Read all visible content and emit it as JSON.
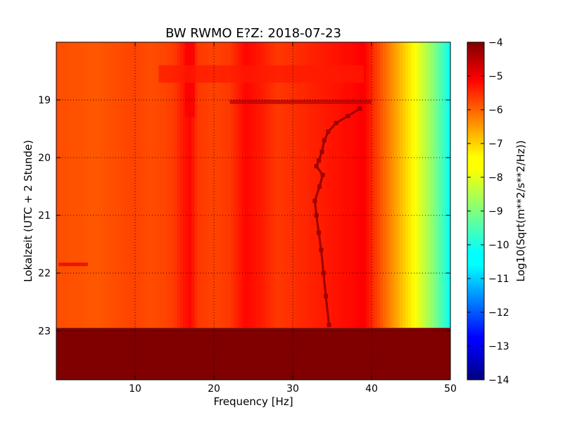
{
  "chart_data": {
    "type": "heatmap",
    "title": "BW RWMO E?Z: 2018-07-23",
    "xlabel": "Frequency [Hz]",
    "ylabel": "Lokalzeit (UTC + 2 Stunde)",
    "xlim": [
      0,
      50
    ],
    "ylim": [
      18.0,
      23.85
    ],
    "y_inverted": true,
    "x_ticks": [
      10,
      20,
      30,
      40,
      50
    ],
    "y_ticks": [
      19,
      20,
      21,
      22,
      23
    ],
    "grid": true,
    "colormap": "jet",
    "colorbar": {
      "label": "Log10(Sqrt(m**2/s**2/Hz))",
      "range": [
        -14,
        -4
      ],
      "ticks": [
        -4,
        -5,
        -6,
        -7,
        -8,
        -9,
        -10,
        -11,
        -12,
        -13,
        -14
      ]
    },
    "background_level": -6.0,
    "no_data_region": {
      "y_start": 22.95,
      "y_end": 23.85,
      "value": -4.0
    },
    "frequency_profile": {
      "x": [
        0,
        5,
        10,
        12,
        14,
        15,
        16,
        17,
        18,
        20,
        22,
        24,
        25,
        26,
        28,
        30,
        32,
        34,
        36,
        38,
        39,
        40,
        41,
        42,
        43,
        44,
        45,
        46,
        47,
        48,
        49,
        50
      ],
      "y": [
        -6.0,
        -6.1,
        -5.9,
        -6.0,
        -5.9,
        -5.8,
        -5.5,
        -5.3,
        -5.8,
        -5.9,
        -5.8,
        -5.3,
        -5.4,
        -5.5,
        -5.8,
        -5.7,
        -5.6,
        -5.5,
        -5.4,
        -5.3,
        -5.2,
        -5.6,
        -6.0,
        -6.4,
        -6.8,
        -7.2,
        -7.6,
        -8.0,
        -8.5,
        -9.0,
        -9.6,
        -10.2
      ]
    },
    "bright_segments": [
      {
        "x_start": 16.3,
        "x_end": 17.6,
        "y_start": 18.0,
        "y_end": 19.3,
        "value": -5.2
      },
      {
        "x_start": 13.0,
        "x_end": 39.0,
        "y_start": 18.4,
        "y_end": 18.7,
        "value": -5.5
      },
      {
        "x_start": 22.0,
        "x_end": 40.0,
        "y_start": 19.0,
        "y_end": 19.07,
        "value": -4.6
      },
      {
        "x_start": 0.3,
        "x_end": 4.0,
        "y_start": 21.82,
        "y_end": 21.88,
        "value": -5.0
      }
    ],
    "tone_track": {
      "x": [
        38.5,
        37.0,
        35.5,
        34.5,
        34.0,
        33.7,
        33.3,
        33.0,
        33.8,
        33.4,
        32.8,
        33.0,
        33.3,
        33.6,
        33.9,
        34.2,
        34.6
      ],
      "y": [
        19.15,
        19.28,
        19.4,
        19.55,
        19.7,
        19.9,
        20.05,
        20.15,
        20.3,
        20.5,
        20.75,
        21.0,
        21.3,
        21.6,
        22.0,
        22.4,
        22.9
      ],
      "value": -4.3
    }
  }
}
